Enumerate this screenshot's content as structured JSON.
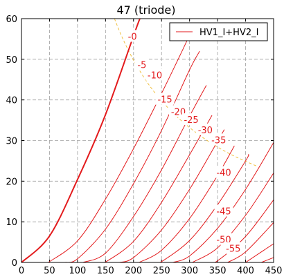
{
  "chart_data": {
    "type": "line",
    "title": "47 (triode)",
    "xlabel": "",
    "ylabel": "",
    "xlim": [
      0,
      450
    ],
    "ylim": [
      0,
      60
    ],
    "xticks": [
      0,
      50,
      100,
      150,
      200,
      250,
      300,
      350,
      400,
      450
    ],
    "yticks": [
      0,
      10,
      20,
      30,
      40,
      50,
      60
    ],
    "grid": true,
    "legend": {
      "position": "top-right",
      "entries": [
        "HV1_I+HV2_I"
      ]
    },
    "colors": {
      "curve": "#e31a1c",
      "dissipation": "#f0c040",
      "grid": "#a0a0a0",
      "axes": "#000000"
    },
    "series": [
      {
        "grid_voltage": 0,
        "label": "-0",
        "points": [
          [
            0,
            0
          ],
          [
            50,
            6.5
          ],
          [
            100,
            20.4
          ],
          [
            150,
            36.4
          ],
          [
            205,
            57.7
          ],
          [
            215,
            61
          ]
        ]
      },
      {
        "grid_voltage": -5,
        "label": "-5",
        "points": [
          [
            48,
            0
          ],
          [
            100,
            5.3
          ],
          [
            150,
            15.6
          ],
          [
            200,
            28.0
          ],
          [
            250,
            41.6
          ],
          [
            290,
            53
          ],
          [
            305,
            57.5
          ]
        ]
      },
      {
        "grid_voltage": -10,
        "label": "-10",
        "points": [
          [
            78,
            0
          ],
          [
            100,
            0.9
          ],
          [
            150,
            8.2
          ],
          [
            200,
            19.4
          ],
          [
            250,
            32.5
          ],
          [
            300,
            47.4
          ],
          [
            318,
            52
          ]
        ]
      },
      {
        "grid_voltage": -15,
        "label": "-15",
        "points": [
          [
            110,
            0
          ],
          [
            150,
            2.3
          ],
          [
            200,
            11.3
          ],
          [
            250,
            22.8
          ],
          [
            300,
            36.0
          ],
          [
            330,
            43.6
          ]
        ]
      },
      {
        "grid_voltage": -20,
        "label": "-20",
        "points": [
          [
            140,
            0
          ],
          [
            150,
            0.1
          ],
          [
            200,
            5.2
          ],
          [
            250,
            14.8
          ],
          [
            300,
            26.5
          ],
          [
            340,
            36.2
          ]
        ]
      },
      {
        "grid_voltage": -25,
        "label": "-25",
        "points": [
          [
            175,
            0
          ],
          [
            200,
            1.2
          ],
          [
            250,
            8.0
          ],
          [
            300,
            18.0
          ],
          [
            350,
            29.8
          ],
          [
            362,
            32.7
          ]
        ]
      },
      {
        "grid_voltage": -30,
        "label": "-30",
        "points": [
          [
            210,
            0
          ],
          [
            250,
            3.0
          ],
          [
            300,
            10.8
          ],
          [
            350,
            21.4
          ],
          [
            380,
            28.7
          ]
        ]
      },
      {
        "grid_voltage": -35,
        "label": "-35",
        "points": [
          [
            240,
            0
          ],
          [
            250,
            0.2
          ],
          [
            300,
            5.4
          ],
          [
            350,
            14.2
          ],
          [
            400,
            25.0
          ],
          [
            405,
            26.6
          ]
        ]
      },
      {
        "grid_voltage": -40,
        "label": "-40",
        "points": [
          [
            270,
            0
          ],
          [
            300,
            1.6
          ],
          [
            350,
            8.4
          ],
          [
            400,
            18.0
          ],
          [
            450,
            29.5
          ]
        ]
      },
      {
        "grid_voltage": -45,
        "label": "-45",
        "points": [
          [
            305,
            0
          ],
          [
            350,
            3.6
          ],
          [
            400,
            11.6
          ],
          [
            450,
            22.0
          ]
        ]
      },
      {
        "grid_voltage": -50,
        "label": "-50",
        "points": [
          [
            335,
            0
          ],
          [
            350,
            0.4
          ],
          [
            400,
            6.4
          ],
          [
            450,
            15.4
          ]
        ]
      },
      {
        "grid_voltage": -55,
        "label": "-55",
        "points": [
          [
            368,
            0
          ],
          [
            400,
            2.6
          ],
          [
            450,
            9.8
          ]
        ]
      },
      {
        "grid_voltage": -60,
        "label": "",
        "points": [
          [
            400,
            0
          ],
          [
            450,
            4.6
          ]
        ]
      },
      {
        "grid_voltage": -65,
        "label": "",
        "points": [
          [
            428,
            0
          ],
          [
            450,
            1.2
          ]
        ]
      }
    ],
    "curve_labels": [
      {
        "text": "-0",
        "x": 198,
        "y": 55.5
      },
      {
        "text": "-5",
        "x": 215,
        "y": 48.5
      },
      {
        "text": "-10",
        "x": 238,
        "y": 46.0
      },
      {
        "text": "-15",
        "x": 256,
        "y": 40.0
      },
      {
        "text": "-20",
        "x": 280,
        "y": 37.0
      },
      {
        "text": "-25",
        "x": 303,
        "y": 35.0
      },
      {
        "text": "-30",
        "x": 328,
        "y": 32.5
      },
      {
        "text": "-35",
        "x": 352,
        "y": 30.0
      },
      {
        "text": "-40",
        "x": 361,
        "y": 22.0
      },
      {
        "text": "-45",
        "x": 361,
        "y": 12.5
      },
      {
        "text": "-50",
        "x": 361,
        "y": 5.5
      },
      {
        "text": "-55",
        "x": 378,
        "y": 3.3
      }
    ],
    "dissipation_curve": {
      "label": "",
      "points": [
        [
          166,
          60
        ],
        [
          180,
          55.3
        ],
        [
          200,
          49.8
        ],
        [
          225,
          44.2
        ],
        [
          250,
          39.8
        ],
        [
          275,
          36.2
        ],
        [
          300,
          33.2
        ],
        [
          325,
          30.6
        ],
        [
          350,
          28.4
        ],
        [
          375,
          26.5
        ],
        [
          400,
          24.9
        ],
        [
          420,
          23.7
        ]
      ]
    }
  }
}
